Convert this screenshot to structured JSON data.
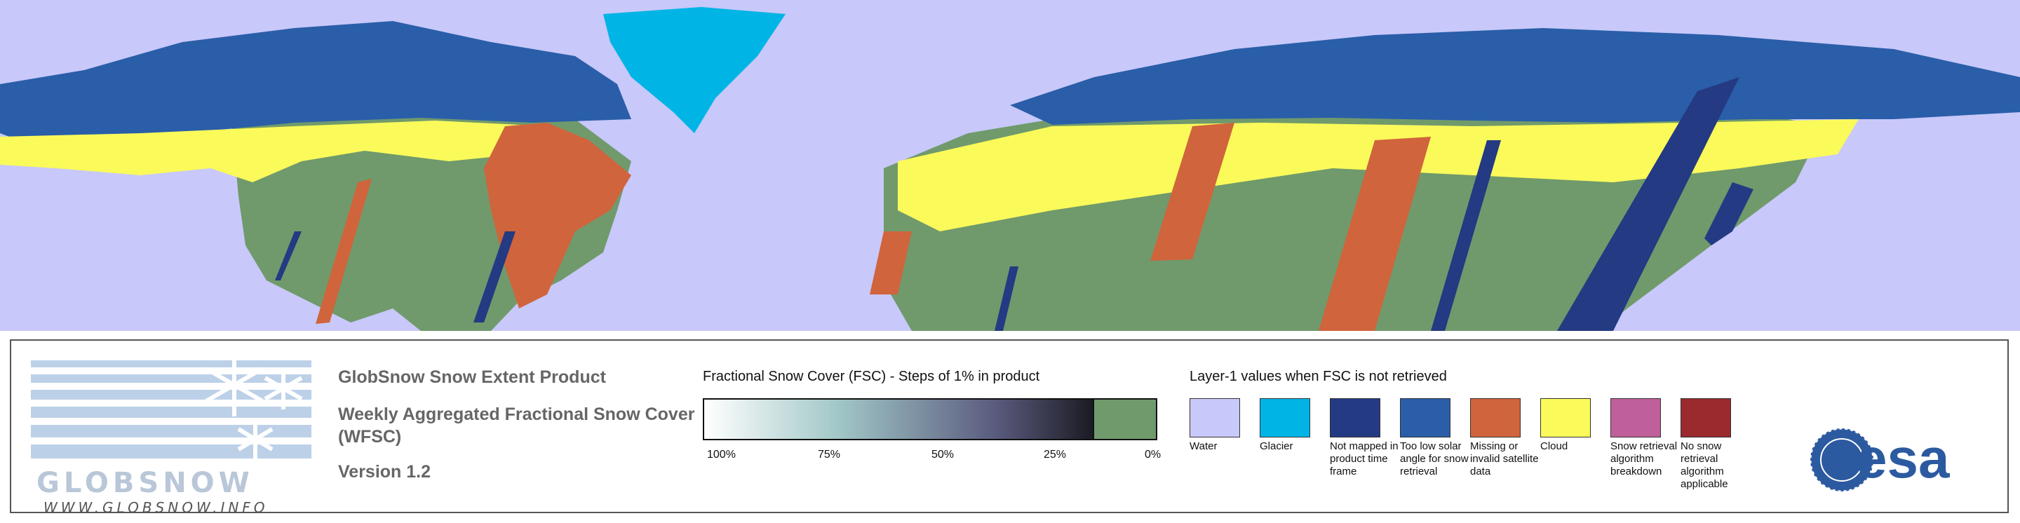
{
  "map": {
    "colors": {
      "water": "#c8c8fa",
      "glacier": "#00b4e6",
      "not_mapped": "#243a82",
      "low_solar": "#2a5ea8",
      "missing": "#d0643c",
      "cloud": "#fafa5a",
      "snow_free": "#709a6c"
    }
  },
  "logo": {
    "wordmark": "GLOBSNOW",
    "url": "WWW.GLOBSNOW.INFO"
  },
  "titles": {
    "product": "GlobSnow Snow Extent Product",
    "subtitle": "Weekly Aggregated Fractional Snow Cover (WFSC)",
    "version": "Version 1.2"
  },
  "fsc_legend": {
    "title": "Fractional Snow Cover (FSC) - Steps of 1% in product",
    "ticks": [
      "100%",
      "75%",
      "50%",
      "25%",
      "0%"
    ],
    "zero_color": "#709a6c"
  },
  "layer1_legend": {
    "title": "Layer-1 values when FSC is not retrieved",
    "items": [
      {
        "label": "Water",
        "color": "#c8c8fa"
      },
      {
        "label": "Glacier",
        "color": "#00b4e6"
      },
      {
        "label": "Not mapped in product time frame",
        "color": "#243a82"
      },
      {
        "label": "Too low solar angle for snow retrieval",
        "color": "#2a5ea8"
      },
      {
        "label": "Missing or invalid satellite data",
        "color": "#d0643c"
      },
      {
        "label": "Cloud",
        "color": "#fafa5a"
      },
      {
        "label": "Snow retrieval algorithm breakdown",
        "color": "#c0609a"
      },
      {
        "label": "No snow retrieval algorithm applicable",
        "color": "#9a2a2e"
      }
    ]
  },
  "esa": {
    "wordmark": "esa"
  }
}
